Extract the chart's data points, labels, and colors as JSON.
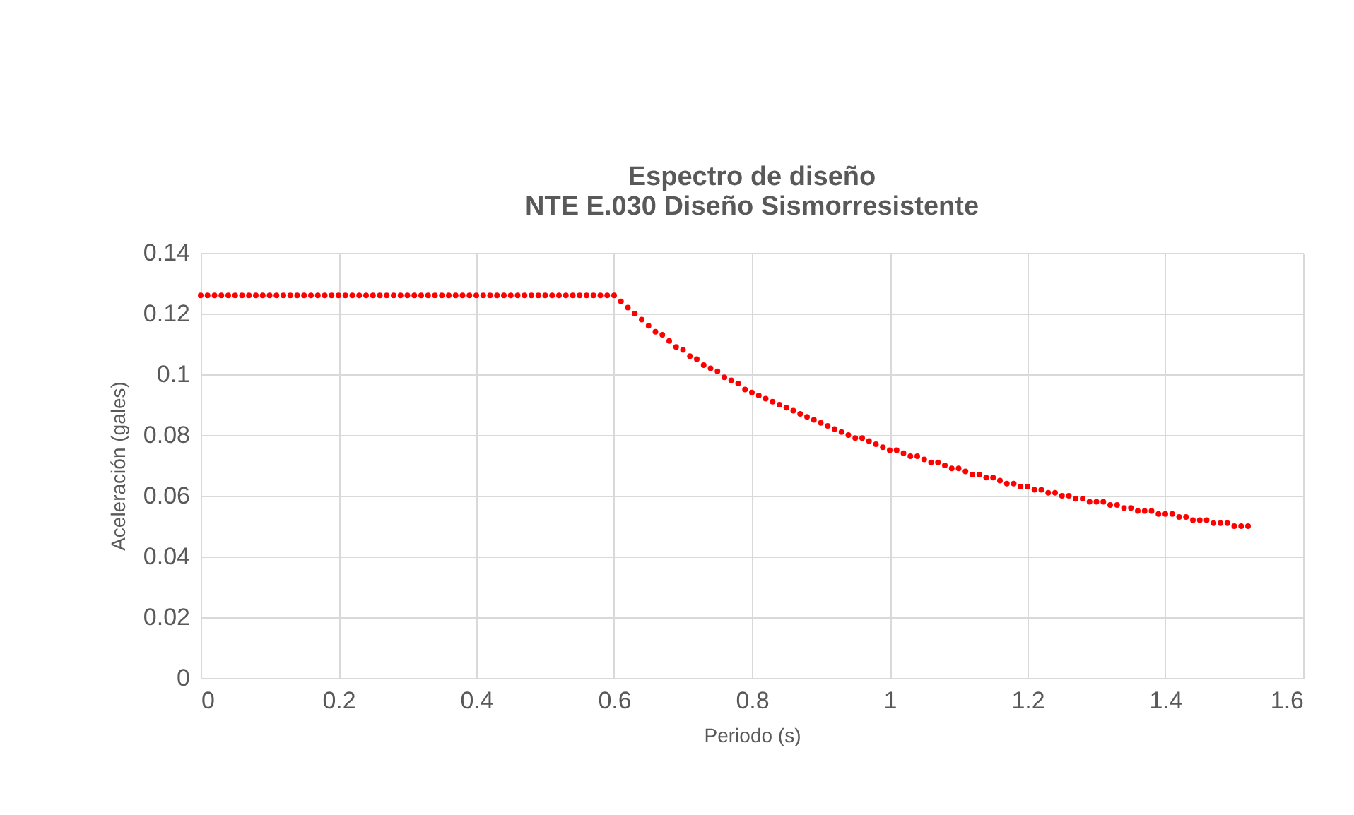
{
  "chart_data": {
    "type": "scatter",
    "title": "Espectro de diseño",
    "subtitle": "NTE E.030 Diseño Sismorresistente",
    "xlabel": "Periodo (s)",
    "ylabel": "Aceleración (gales)",
    "x": [
      0,
      0.01,
      0.02,
      0.03,
      0.04,
      0.05,
      0.06,
      0.07,
      0.08,
      0.09,
      0.1,
      0.11,
      0.12,
      0.13,
      0.14,
      0.15,
      0.16,
      0.17,
      0.18,
      0.19,
      0.2,
      0.21,
      0.22,
      0.23,
      0.24,
      0.25,
      0.26,
      0.27,
      0.28,
      0.29,
      0.3,
      0.31,
      0.32,
      0.33,
      0.34,
      0.35,
      0.36,
      0.37,
      0.38,
      0.39,
      0.4,
      0.41,
      0.42,
      0.43,
      0.44,
      0.45,
      0.46,
      0.47,
      0.48,
      0.49,
      0.5,
      0.51,
      0.52,
      0.53,
      0.54,
      0.55,
      0.56,
      0.57,
      0.58,
      0.59,
      0.6,
      0.61,
      0.62,
      0.63,
      0.64,
      0.65,
      0.66,
      0.67,
      0.68,
      0.69,
      0.7,
      0.71,
      0.72,
      0.73,
      0.74,
      0.75,
      0.76,
      0.77,
      0.78,
      0.79,
      0.8,
      0.81,
      0.82,
      0.83,
      0.84,
      0.85,
      0.86,
      0.87,
      0.88,
      0.89,
      0.9,
      0.91,
      0.92,
      0.93,
      0.94,
      0.95,
      0.96,
      0.97,
      0.98,
      0.99,
      1,
      1.01,
      1.02,
      1.03,
      1.04,
      1.05,
      1.06,
      1.07,
      1.08,
      1.09,
      1.1,
      1.11,
      1.12,
      1.13,
      1.14,
      1.15,
      1.16,
      1.17,
      1.18,
      1.19,
      1.2,
      1.21,
      1.22,
      1.23,
      1.24,
      1.25,
      1.26,
      1.27,
      1.28,
      1.29,
      1.3,
      1.31,
      1.32,
      1.33,
      1.34,
      1.35,
      1.36,
      1.37,
      1.38,
      1.39,
      1.4,
      1.41,
      1.42,
      1.43,
      1.44,
      1.45,
      1.46,
      1.47,
      1.48,
      1.49,
      1.5,
      1.51,
      1.52
    ],
    "series": [
      {
        "color": "#ff0000",
        "values": [
          0.126,
          0.126,
          0.126,
          0.126,
          0.126,
          0.126,
          0.126,
          0.126,
          0.126,
          0.126,
          0.126,
          0.126,
          0.126,
          0.126,
          0.126,
          0.126,
          0.126,
          0.126,
          0.126,
          0.126,
          0.126,
          0.126,
          0.126,
          0.126,
          0.126,
          0.126,
          0.126,
          0.126,
          0.126,
          0.126,
          0.126,
          0.126,
          0.126,
          0.126,
          0.126,
          0.126,
          0.126,
          0.126,
          0.126,
          0.126,
          0.126,
          0.126,
          0.126,
          0.126,
          0.126,
          0.126,
          0.126,
          0.126,
          0.126,
          0.126,
          0.126,
          0.126,
          0.126,
          0.126,
          0.126,
          0.126,
          0.126,
          0.126,
          0.126,
          0.126,
          0.126,
          0.124,
          0.122,
          0.12,
          0.118,
          0.116,
          0.114,
          0.113,
          0.111,
          0.109,
          0.108,
          0.106,
          0.105,
          0.103,
          0.102,
          0.101,
          0.099,
          0.098,
          0.097,
          0.095,
          0.094,
          0.093,
          0.092,
          0.091,
          0.09,
          0.089,
          0.088,
          0.087,
          0.086,
          0.085,
          0.084,
          0.083,
          0.082,
          0.081,
          0.08,
          0.079,
          0.079,
          0.078,
          0.077,
          0.076,
          0.075,
          0.075,
          0.074,
          0.073,
          0.073,
          0.072,
          0.071,
          0.071,
          0.07,
          0.069,
          0.069,
          0.068,
          0.067,
          0.067,
          0.066,
          0.066,
          0.065,
          0.064,
          0.064,
          0.063,
          0.063,
          0.062,
          0.062,
          0.061,
          0.061,
          0.06,
          0.06,
          0.059,
          0.059,
          0.058,
          0.058,
          0.058,
          0.057,
          0.057,
          0.056,
          0.056,
          0.055,
          0.055,
          0.055,
          0.054,
          0.054,
          0.054,
          0.053,
          0.053,
          0.052,
          0.052,
          0.052,
          0.051,
          0.051,
          0.051,
          0.05,
          0.05,
          0.05
        ]
      }
    ],
    "xlim": [
      0,
      1.6
    ],
    "xticks": [
      0,
      0.2,
      0.4,
      0.6,
      0.8,
      1,
      1.2,
      1.4,
      1.6
    ],
    "ylim": [
      0,
      0.14
    ],
    "yticks": [
      0,
      0.02,
      0.04,
      0.06,
      0.08,
      0.1,
      0.12,
      0.14
    ],
    "grid": true,
    "marker": "circle"
  }
}
